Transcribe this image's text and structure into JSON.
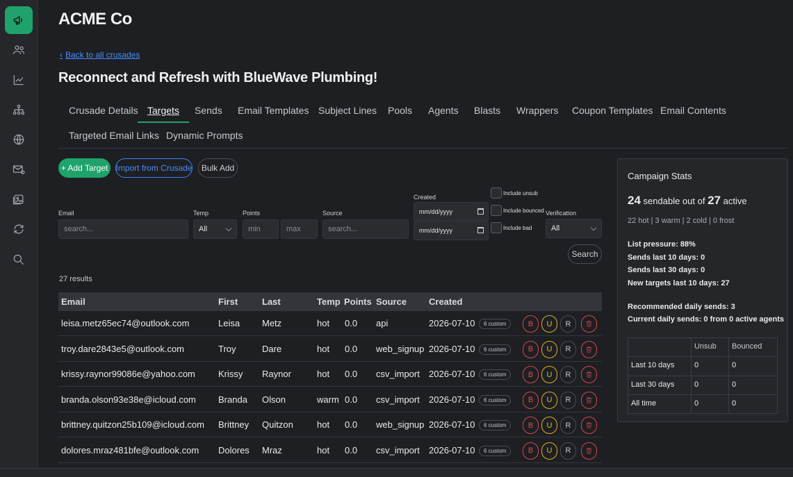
{
  "company": "ACME Co",
  "back_link": "Back to all crusades",
  "page_title": "Reconnect and Refresh with BlueWave Plumbing!",
  "sidebar": [
    {
      "icon": "megaphone-icon",
      "active": true
    },
    {
      "icon": "users-icon"
    },
    {
      "icon": "chart-line-icon"
    },
    {
      "icon": "network-icon"
    },
    {
      "icon": "globe-icon"
    },
    {
      "icon": "mail-at-icon"
    },
    {
      "icon": "image-icon"
    },
    {
      "icon": "refresh-icon"
    },
    {
      "icon": "search-icon"
    }
  ],
  "tabs": {
    "crusade_details": "Crusade Details",
    "targets": "Targets",
    "sends": "Sends",
    "email_templates": "Email Templates",
    "subject_lines": "Subject Lines",
    "pools": "Pools",
    "agents": "Agents",
    "blasts": "Blasts",
    "wrappers": "Wrappers",
    "coupon_templates": "Coupon Templates",
    "email_contents": "Email Contents",
    "targeted_email_links": "Targeted Email Links",
    "dynamic_prompts": "Dynamic Prompts"
  },
  "actions": {
    "add_target": "+ Add Target",
    "import": "Import from Crusade",
    "bulk_add": "Bulk Add",
    "search": "Search"
  },
  "filters": {
    "email_label": "Email",
    "email_placeholder": "search...",
    "temp_label": "Temp",
    "temp_value": "All",
    "points_label": "Points",
    "min_placeholder": "min",
    "max_placeholder": "max",
    "source_label": "Source",
    "source_placeholder": "search...",
    "created_label": "Created",
    "date_placeholder": "mm/dd/yyyy",
    "include_unsub": "Include unsub",
    "include_bounced": "Include bounced",
    "include_bad": "Include bad",
    "verification_label": "Verification",
    "verification_value": "All"
  },
  "results": "27 results",
  "columns": {
    "email": "Email",
    "first": "First",
    "last": "Last",
    "temp": "Temp",
    "points": "Points",
    "source": "Source",
    "created": "Created"
  },
  "rows": [
    {
      "email": "leisa.metz65ec74@outlook.com",
      "first": "Leisa",
      "last": "Metz",
      "temp": "hot",
      "points": "0.0",
      "source": "api",
      "created": "2026-07-10",
      "custom": "6 custom"
    },
    {
      "email": "troy.dare2843e5@outlook.com",
      "first": "Troy",
      "last": "Dare",
      "temp": "hot",
      "points": "0.0",
      "source": "web_signup",
      "created": "2026-07-10",
      "custom": "6 custom"
    },
    {
      "email": "krissy.raynor99086e@yahoo.com",
      "first": "Krissy",
      "last": "Raynor",
      "temp": "hot",
      "points": "0.0",
      "source": "csv_import",
      "created": "2026-07-10",
      "custom": "6 custom"
    },
    {
      "email": "branda.olson93e38e@icloud.com",
      "first": "Branda",
      "last": "Olson",
      "temp": "warm",
      "points": "0.0",
      "source": "csv_import",
      "created": "2026-07-10",
      "custom": "6 custom"
    },
    {
      "email": "brittney.quitzon25b109@icloud.com",
      "first": "Brittney",
      "last": "Quitzon",
      "temp": "hot",
      "points": "0.0",
      "source": "web_signup",
      "created": "2026-07-10",
      "custom": "6 custom"
    },
    {
      "email": "dolores.mraz481bfe@outlook.com",
      "first": "Dolores",
      "last": "Mraz",
      "temp": "hot",
      "points": "0.0",
      "source": "csv_import",
      "created": "2026-07-10",
      "custom": "6 custom"
    }
  ],
  "row_actions": {
    "b": "B",
    "u": "U",
    "r": "R"
  },
  "stats": {
    "title": "Campaign Stats",
    "sendable": "24",
    "sendable_text": "sendable out of",
    "active": "27",
    "active_text": "active",
    "temps": "22 hot | 3 warm | 2 cold | 0 frost",
    "list_pressure_label": "List pressure:",
    "list_pressure": "88%",
    "sends10_label": "Sends last 10 days:",
    "sends10": "0",
    "sends30_label": "Sends last 30 days:",
    "sends30": "0",
    "newtargets_label": "New targets last 10 days:",
    "newtargets": "27",
    "recommended_label": "Recommended daily sends:",
    "recommended": "3",
    "current_label": "Current daily sends:",
    "current": "0",
    "current_suffix": "from 0 active agents",
    "table_head": {
      "unsub": "Unsub",
      "bounced": "Bounced"
    },
    "table_rows": [
      {
        "label": "Last 10 days",
        "unsub": "0",
        "bounced": "0"
      },
      {
        "label": "Last 30 days",
        "unsub": "0",
        "bounced": "0"
      },
      {
        "label": "All time",
        "unsub": "0",
        "bounced": "0"
      }
    ]
  }
}
